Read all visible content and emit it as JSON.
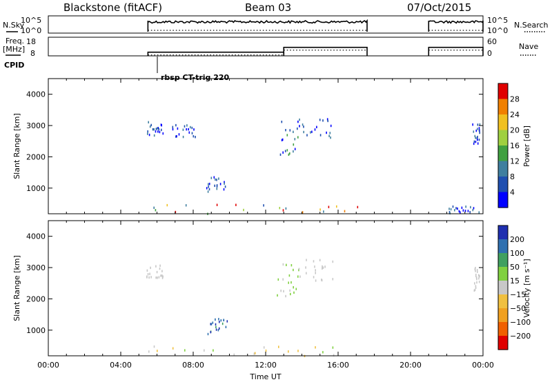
{
  "header": {
    "station": "Blackstone (fitACF)",
    "beam": "Beam 03",
    "date": "07/Oct/2015"
  },
  "panels": {
    "nsky": {
      "left_label": "N.Sky",
      "left_ticks": [
        "10^5",
        "10^0"
      ],
      "right_ticks": [
        "10^5",
        "10^0"
      ],
      "right_label": "N.Search"
    },
    "freq": {
      "left_label_1": "Freq.",
      "left_label_2": "[MHz]",
      "left_ticks": [
        "18",
        "8"
      ],
      "right_ticks": [
        "60",
        "0"
      ],
      "right_label": "Nave"
    },
    "cpid": {
      "label": "CPID",
      "program": "rbsp CT-trig 220"
    }
  },
  "chart_data": [
    {
      "type": "heatmap",
      "name": "power",
      "xlabel": "",
      "ylabel": "Slant Range [km]",
      "yticks": [
        "1000",
        "2000",
        "3000",
        "4000"
      ],
      "xlim": [
        0,
        24
      ],
      "ylim": [
        180,
        4500
      ],
      "colorbar": {
        "label": "Power [dB]",
        "ticks": [
          "4",
          "8",
          "12",
          "16",
          "20",
          "24",
          "28"
        ],
        "colors": [
          "#0000ff",
          "#1f4fb0",
          "#3f7f9f",
          "#40a040",
          "#9fd040",
          "#f0c020",
          "#f08000",
          "#e00000"
        ]
      },
      "scatter_regions": [
        {
          "x": [
            5.5,
            17.6
          ],
          "y": [
            200,
            520
          ],
          "value_range": [
            4,
            28
          ]
        },
        {
          "x": [
            5.4,
            6.4
          ],
          "y": [
            2700,
            3150
          ],
          "value_range": [
            4,
            12
          ]
        },
        {
          "x": [
            6.8,
            8.2
          ],
          "y": [
            2650,
            3050
          ],
          "value_range": [
            4,
            12
          ]
        },
        {
          "x": [
            8.7,
            9.9
          ],
          "y": [
            900,
            1400
          ],
          "value_range": [
            4,
            12
          ]
        },
        {
          "x": [
            12.6,
            13.8
          ],
          "y": [
            2100,
            3200
          ],
          "value_range": [
            4,
            16
          ]
        },
        {
          "x": [
            13.8,
            15.8
          ],
          "y": [
            2600,
            3300
          ],
          "value_range": [
            4,
            12
          ]
        },
        {
          "x": [
            23.4,
            23.8
          ],
          "y": [
            2300,
            3100
          ],
          "value_range": [
            4,
            12
          ]
        },
        {
          "x": [
            22.0,
            23.9
          ],
          "y": [
            200,
            450
          ],
          "value_range": [
            4,
            12
          ]
        }
      ]
    },
    {
      "type": "heatmap",
      "name": "velocity",
      "xlabel": "Time UT",
      "ylabel": "Slant Range [km]",
      "xticks": [
        "00:00",
        "04:00",
        "08:00",
        "12:00",
        "16:00",
        "20:00",
        "00:00"
      ],
      "yticks": [
        "1000",
        "2000",
        "3000",
        "4000"
      ],
      "xlim": [
        0,
        24
      ],
      "ylim": [
        180,
        4500
      ],
      "colorbar": {
        "label": "Velocity [m s⁻¹]",
        "ticks": [
          "200",
          "100",
          "50",
          "15",
          "−15",
          "−50",
          "−100",
          "−200"
        ],
        "colors": [
          "#1f2fb0",
          "#2f70b0",
          "#40a060",
          "#80d040",
          "#c8c8c8",
          "#f0c040",
          "#f0a020",
          "#f06000",
          "#e00000"
        ]
      },
      "scatter_regions": [
        {
          "x": [
            5.5,
            17.6
          ],
          "y": [
            200,
            520
          ],
          "value_range": [
            -50,
            50
          ]
        },
        {
          "x": [
            5.4,
            6.4
          ],
          "y": [
            2700,
            3150
          ],
          "value_range": [
            -15,
            15
          ]
        },
        {
          "x": [
            8.7,
            9.9
          ],
          "y": [
            900,
            1400
          ],
          "value_range": [
            100,
            200
          ]
        },
        {
          "x": [
            12.6,
            13.8
          ],
          "y": [
            2100,
            3200
          ],
          "value_range": [
            15,
            50
          ]
        },
        {
          "x": [
            13.8,
            15.8
          ],
          "y": [
            2600,
            3300
          ],
          "value_range": [
            -15,
            15
          ]
        },
        {
          "x": [
            23.4,
            23.8
          ],
          "y": [
            2300,
            3100
          ],
          "value_range": [
            -15,
            15
          ]
        }
      ]
    }
  ],
  "coverage": {
    "on_periods_ut": [
      [
        5.5,
        17.6
      ],
      [
        21.0,
        24.0
      ]
    ],
    "freq_mhz_segments": [
      {
        "x": [
          5.5,
          13.0
        ],
        "value": 10.8
      },
      {
        "x": [
          13.0,
          17.6
        ],
        "value": 14.5
      },
      {
        "x": [
          21.0,
          24.0
        ],
        "value": 14.5
      }
    ]
  }
}
